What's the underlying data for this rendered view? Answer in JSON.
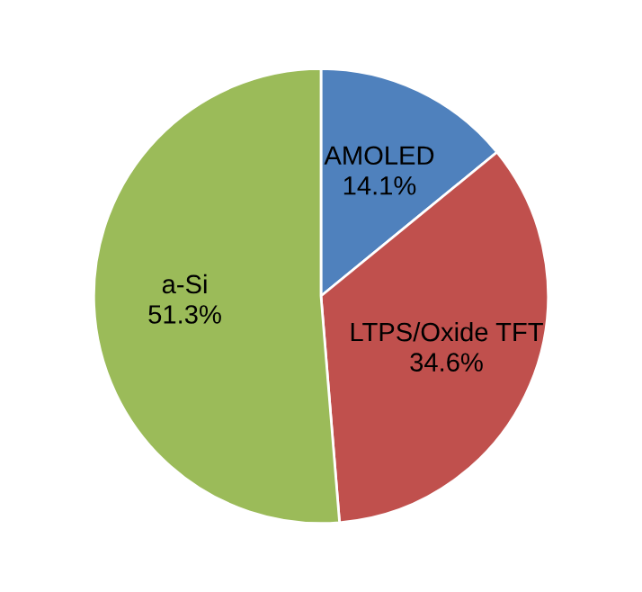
{
  "chart_data": {
    "type": "pie",
    "categories": [
      "AMOLED",
      "LTPS/Oxide TFT",
      "a-Si"
    ],
    "values": [
      14.1,
      34.6,
      51.3
    ],
    "colors": [
      "#4f81bd",
      "#c0504d",
      "#9bbb59"
    ],
    "value_labels": [
      "14.1%",
      "34.6%",
      "51.3%"
    ],
    "legend": false
  }
}
